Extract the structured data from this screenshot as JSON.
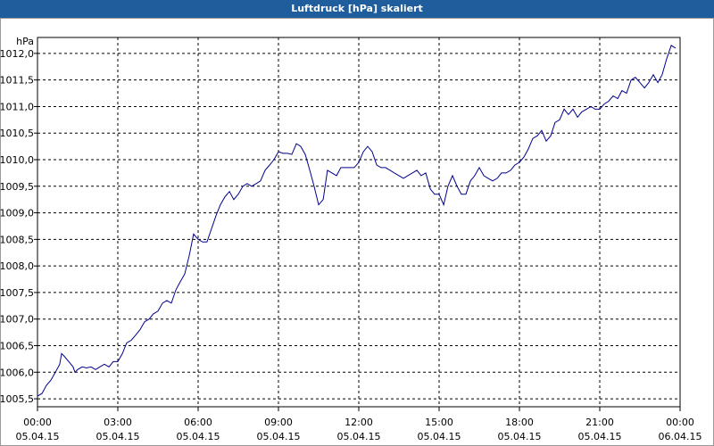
{
  "window": {
    "title": "Luftdruck [hPa] skaliert"
  },
  "chart_data": {
    "type": "line",
    "title": "Luftdruck [hPa] skaliert",
    "ylabel": "hPa",
    "ylim": [
      1005.35,
      1012.3
    ],
    "grid": true,
    "y_ticks": [
      "1005,5",
      "1006,0",
      "1006,5",
      "1007,0",
      "1007,5",
      "1008,0",
      "1008,5",
      "1009,0",
      "1009,5",
      "1010,0",
      "1010,5",
      "1011,0",
      "1011,5",
      "1012,0"
    ],
    "y_tick_values": [
      1005.5,
      1006.0,
      1006.5,
      1007.0,
      1007.5,
      1008.0,
      1008.5,
      1009.0,
      1009.5,
      1010.0,
      1010.5,
      1011.0,
      1011.5,
      1012.0
    ],
    "x_ticks": [
      {
        "time": "00:00",
        "date": "05.04.15",
        "h": 0
      },
      {
        "time": "03:00",
        "date": "05.04.15",
        "h": 3
      },
      {
        "time": "06:00",
        "date": "05.04.15",
        "h": 6
      },
      {
        "time": "09:00",
        "date": "05.04.15",
        "h": 9
      },
      {
        "time": "12:00",
        "date": "05.04.15",
        "h": 12
      },
      {
        "time": "15:00",
        "date": "05.04.15",
        "h": 15
      },
      {
        "time": "18:00",
        "date": "05.04.15",
        "h": 18
      },
      {
        "time": "21:00",
        "date": "05.04.15",
        "h": 21
      },
      {
        "time": "00:00",
        "date": "06.04.15",
        "h": 24
      }
    ],
    "series": [
      {
        "color": "#00008b",
        "points": [
          [
            0,
            1005.55
          ],
          [
            0.17,
            1005.6
          ],
          [
            0.33,
            1005.75
          ],
          [
            0.5,
            1005.85
          ],
          [
            0.67,
            1006.0
          ],
          [
            0.83,
            1006.15
          ],
          [
            0.9,
            1006.35
          ],
          [
            1.0,
            1006.3
          ],
          [
            1.17,
            1006.2
          ],
          [
            1.33,
            1006.1
          ],
          [
            1.4,
            1006.0
          ],
          [
            1.5,
            1006.05
          ],
          [
            1.67,
            1006.1
          ],
          [
            1.83,
            1006.08
          ],
          [
            2.0,
            1006.1
          ],
          [
            2.17,
            1006.05
          ],
          [
            2.33,
            1006.1
          ],
          [
            2.5,
            1006.15
          ],
          [
            2.67,
            1006.1
          ],
          [
            2.83,
            1006.2
          ],
          [
            3.0,
            1006.2
          ],
          [
            3.17,
            1006.35
          ],
          [
            3.33,
            1006.55
          ],
          [
            3.5,
            1006.6
          ],
          [
            3.67,
            1006.7
          ],
          [
            3.83,
            1006.8
          ],
          [
            4.0,
            1006.95
          ],
          [
            4.17,
            1007.0
          ],
          [
            4.33,
            1007.1
          ],
          [
            4.5,
            1007.15
          ],
          [
            4.67,
            1007.3
          ],
          [
            4.83,
            1007.35
          ],
          [
            5.0,
            1007.3
          ],
          [
            5.17,
            1007.55
          ],
          [
            5.33,
            1007.7
          ],
          [
            5.5,
            1007.85
          ],
          [
            5.67,
            1008.2
          ],
          [
            5.83,
            1008.6
          ],
          [
            6.0,
            1008.5
          ],
          [
            6.17,
            1008.45
          ],
          [
            6.33,
            1008.45
          ],
          [
            6.5,
            1008.7
          ],
          [
            6.67,
            1008.95
          ],
          [
            6.83,
            1009.15
          ],
          [
            7.0,
            1009.3
          ],
          [
            7.17,
            1009.4
          ],
          [
            7.33,
            1009.25
          ],
          [
            7.5,
            1009.35
          ],
          [
            7.67,
            1009.5
          ],
          [
            7.83,
            1009.55
          ],
          [
            8.0,
            1009.5
          ],
          [
            8.17,
            1009.55
          ],
          [
            8.33,
            1009.6
          ],
          [
            8.5,
            1009.8
          ],
          [
            8.67,
            1009.9
          ],
          [
            8.83,
            1010.0
          ],
          [
            9.0,
            1010.15
          ],
          [
            9.17,
            1010.12
          ],
          [
            9.33,
            1010.12
          ],
          [
            9.5,
            1010.1
          ],
          [
            9.67,
            1010.3
          ],
          [
            9.83,
            1010.25
          ],
          [
            10.0,
            1010.1
          ],
          [
            10.17,
            1009.8
          ],
          [
            10.33,
            1009.5
          ],
          [
            10.5,
            1009.15
          ],
          [
            10.67,
            1009.25
          ],
          [
            10.83,
            1009.8
          ],
          [
            11.0,
            1009.75
          ],
          [
            11.17,
            1009.7
          ],
          [
            11.33,
            1009.85
          ],
          [
            11.5,
            1009.85
          ],
          [
            11.67,
            1009.85
          ],
          [
            11.83,
            1009.85
          ],
          [
            12.0,
            1009.95
          ],
          [
            12.17,
            1010.15
          ],
          [
            12.33,
            1010.25
          ],
          [
            12.5,
            1010.15
          ],
          [
            12.67,
            1009.9
          ],
          [
            12.83,
            1009.85
          ],
          [
            13.0,
            1009.85
          ],
          [
            13.17,
            1009.8
          ],
          [
            13.33,
            1009.75
          ],
          [
            13.5,
            1009.7
          ],
          [
            13.67,
            1009.65
          ],
          [
            13.83,
            1009.7
          ],
          [
            14.0,
            1009.75
          ],
          [
            14.17,
            1009.8
          ],
          [
            14.33,
            1009.7
          ],
          [
            14.5,
            1009.75
          ],
          [
            14.67,
            1009.45
          ],
          [
            14.83,
            1009.35
          ],
          [
            15.0,
            1009.35
          ],
          [
            15.17,
            1009.15
          ],
          [
            15.33,
            1009.5
          ],
          [
            15.5,
            1009.7
          ],
          [
            15.67,
            1009.5
          ],
          [
            15.83,
            1009.35
          ],
          [
            16.0,
            1009.35
          ],
          [
            16.17,
            1009.6
          ],
          [
            16.33,
            1009.7
          ],
          [
            16.5,
            1009.85
          ],
          [
            16.67,
            1009.7
          ],
          [
            16.83,
            1009.65
          ],
          [
            17.0,
            1009.6
          ],
          [
            17.17,
            1009.65
          ],
          [
            17.33,
            1009.75
          ],
          [
            17.5,
            1009.75
          ],
          [
            17.67,
            1009.8
          ],
          [
            17.83,
            1009.9
          ],
          [
            18.0,
            1009.95
          ],
          [
            18.17,
            1010.05
          ],
          [
            18.33,
            1010.2
          ],
          [
            18.5,
            1010.4
          ],
          [
            18.67,
            1010.45
          ],
          [
            18.83,
            1010.55
          ],
          [
            19.0,
            1010.35
          ],
          [
            19.17,
            1010.45
          ],
          [
            19.33,
            1010.7
          ],
          [
            19.5,
            1010.75
          ],
          [
            19.67,
            1010.95
          ],
          [
            19.83,
            1010.85
          ],
          [
            20.0,
            1010.95
          ],
          [
            20.17,
            1010.8
          ],
          [
            20.33,
            1010.9
          ],
          [
            20.5,
            1010.95
          ],
          [
            20.67,
            1011.0
          ],
          [
            20.83,
            1010.95
          ],
          [
            21.0,
            1010.95
          ],
          [
            21.17,
            1011.05
          ],
          [
            21.33,
            1011.1
          ],
          [
            21.5,
            1011.2
          ],
          [
            21.67,
            1011.15
          ],
          [
            21.83,
            1011.3
          ],
          [
            22.0,
            1011.25
          ],
          [
            22.17,
            1011.5
          ],
          [
            22.33,
            1011.55
          ],
          [
            22.5,
            1011.45
          ],
          [
            22.67,
            1011.35
          ],
          [
            22.83,
            1011.45
          ],
          [
            23.0,
            1011.6
          ],
          [
            23.17,
            1011.45
          ],
          [
            23.33,
            1011.6
          ],
          [
            23.5,
            1011.9
          ],
          [
            23.67,
            1012.15
          ],
          [
            23.83,
            1012.1
          ]
        ]
      }
    ]
  }
}
